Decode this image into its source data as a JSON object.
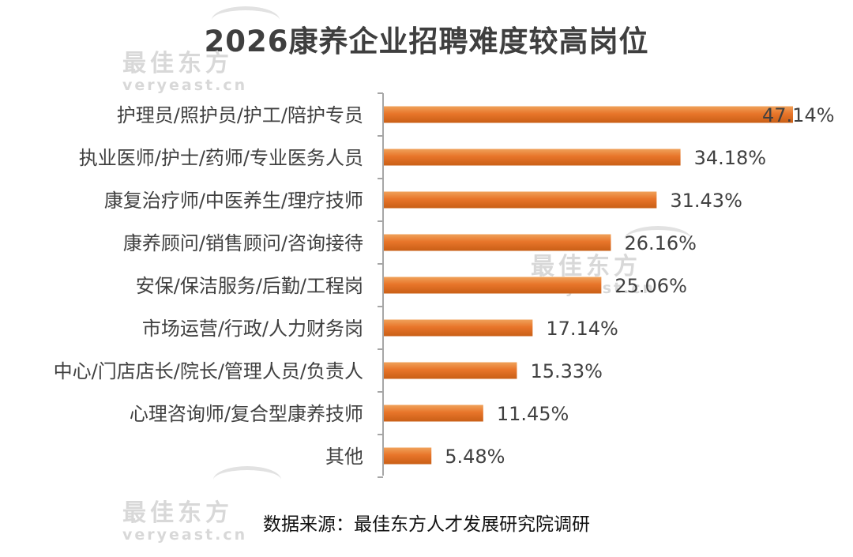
{
  "title": "2026康养企业招聘难度较高岗位",
  "watermark": {
    "cn": "最佳东方",
    "en": "veryeast.cn"
  },
  "source": "数据来源：最佳东方人才发展研究院调研",
  "colors": {
    "bar_light": "#f0a25a",
    "bar_mid": "#e8752a",
    "bar_dark": "#c95f16",
    "axis": "#a6a6a6",
    "label_text": "#404040",
    "value_text": "#404040"
  },
  "chart_data": {
    "type": "bar",
    "orientation": "horizontal",
    "categories": [
      "护理员/照护员/护工/陪护专员",
      "执业医师/护士/药师/专业医务人员",
      "康复治疗师/中医养生/理疗技师",
      "康养顾问/销售顾问/咨询接待",
      "安保/保洁服务/后勤/工程岗",
      "市场运营/行政/人力财务岗",
      "中心/门店店长/院长/管理人员/负责人",
      "心理咨询师/复合型康养技师",
      "其他"
    ],
    "values": [
      47.14,
      34.18,
      31.43,
      26.16,
      25.06,
      17.14,
      15.33,
      11.45,
      5.48
    ],
    "data_labels": [
      "47.14%",
      "34.18%",
      "31.43%",
      "26.16%",
      "25.06%",
      "17.14%",
      "15.33%",
      "11.45%",
      "5.48%"
    ],
    "unit": "%",
    "xlim": [
      0,
      48
    ],
    "grid": false,
    "legend": "none"
  }
}
